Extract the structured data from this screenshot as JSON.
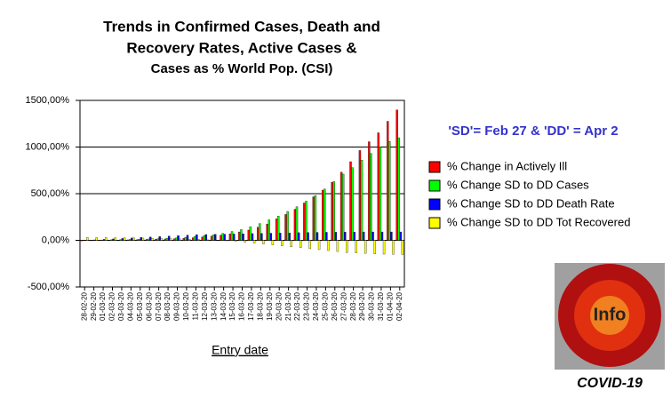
{
  "chart_data": {
    "type": "bar",
    "title": [
      "Trends in Confirmed Cases, Death and",
      "Recovery Rates, Active Cases &",
      "Cases as % World Pop. (CSI)"
    ],
    "annotation": "'SD'= Feb 27 & 'DD' = Apr 2",
    "x_label": "Entry date",
    "logo_text": "Info",
    "logo_caption": "COVID-19",
    "categories": [
      "28-02-20",
      "29-02-20",
      "01-03-20",
      "02-03-20",
      "03-03-20",
      "04-03-20",
      "05-03-20",
      "06-03-20",
      "07-03-20",
      "08-03-20",
      "09-03-20",
      "10-03-20",
      "11-03-20",
      "12-03-20",
      "13-03-20",
      "14-03-20",
      "15-03-20",
      "16-03-20",
      "17-03-20",
      "18-03-20",
      "19-03-20",
      "20-03-20",
      "21-03-20",
      "22-03-20",
      "23-03-20",
      "24-03-20",
      "25-03-20",
      "26-03-20",
      "27-03-20",
      "28-03-20",
      "29-03-20",
      "30-03-20",
      "31-03-20",
      "01-04-20",
      "02-04-20"
    ],
    "series": [
      {
        "name": "% Change in Actively Ill",
        "color": "#ff0000",
        "values": [
          -6,
          -5,
          -3,
          0,
          2,
          5,
          8,
          10,
          12,
          15,
          18,
          22,
          28,
          35,
          45,
          55,
          70,
          90,
          110,
          140,
          175,
          230,
          277,
          333,
          400,
          466,
          538,
          622,
          730,
          843,
          963,
          1057,
          1153,
          1276,
          1397.87
        ]
      },
      {
        "name": "% Change SD to DD Cases",
        "color": "#00ff00",
        "values": [
          0,
          2,
          4,
          6,
          8,
          10,
          12,
          15,
          18,
          22,
          26,
          32,
          40,
          50,
          60,
          75,
          95,
          115,
          145,
          180,
          220,
          260,
          310,
          360,
          420,
          480,
          550,
          630,
          710,
          780,
          860,
          930,
          1000,
          1060,
          1100
        ]
      },
      {
        "name": "% Change SD to DD Death Rate",
        "color": "#0000ff",
        "values": [
          0,
          5,
          10,
          15,
          20,
          25,
          30,
          35,
          40,
          45,
          50,
          55,
          60,
          62,
          64,
          66,
          68,
          70,
          72,
          74,
          76,
          78,
          80,
          82,
          84,
          85,
          86,
          87,
          88,
          89,
          90,
          90,
          90,
          90,
          90
        ]
      },
      {
        "name": "% Change SD to DD Tot Recovered",
        "color": "#ffff00",
        "values": [
          30,
          30,
          30,
          28,
          26,
          25,
          24,
          22,
          20,
          18,
          15,
          12,
          10,
          5,
          0,
          -5,
          -10,
          -20,
          -30,
          -40,
          -50,
          -60,
          -70,
          -80,
          -90,
          -100,
          -110,
          -120,
          -130,
          -135,
          -140,
          -145,
          -148,
          -150,
          -152
        ]
      }
    ],
    "ylim": [
      -500,
      1500
    ],
    "yticks": [
      {
        "value": -500,
        "label": "-500,00%"
      },
      {
        "value": 0,
        "label": "0,00%"
      },
      {
        "value": 500,
        "label": "500,00%"
      },
      {
        "value": 1000,
        "label": "1000,00%"
      },
      {
        "value": 1500,
        "label": "1500,00%"
      }
    ],
    "grid": true
  }
}
